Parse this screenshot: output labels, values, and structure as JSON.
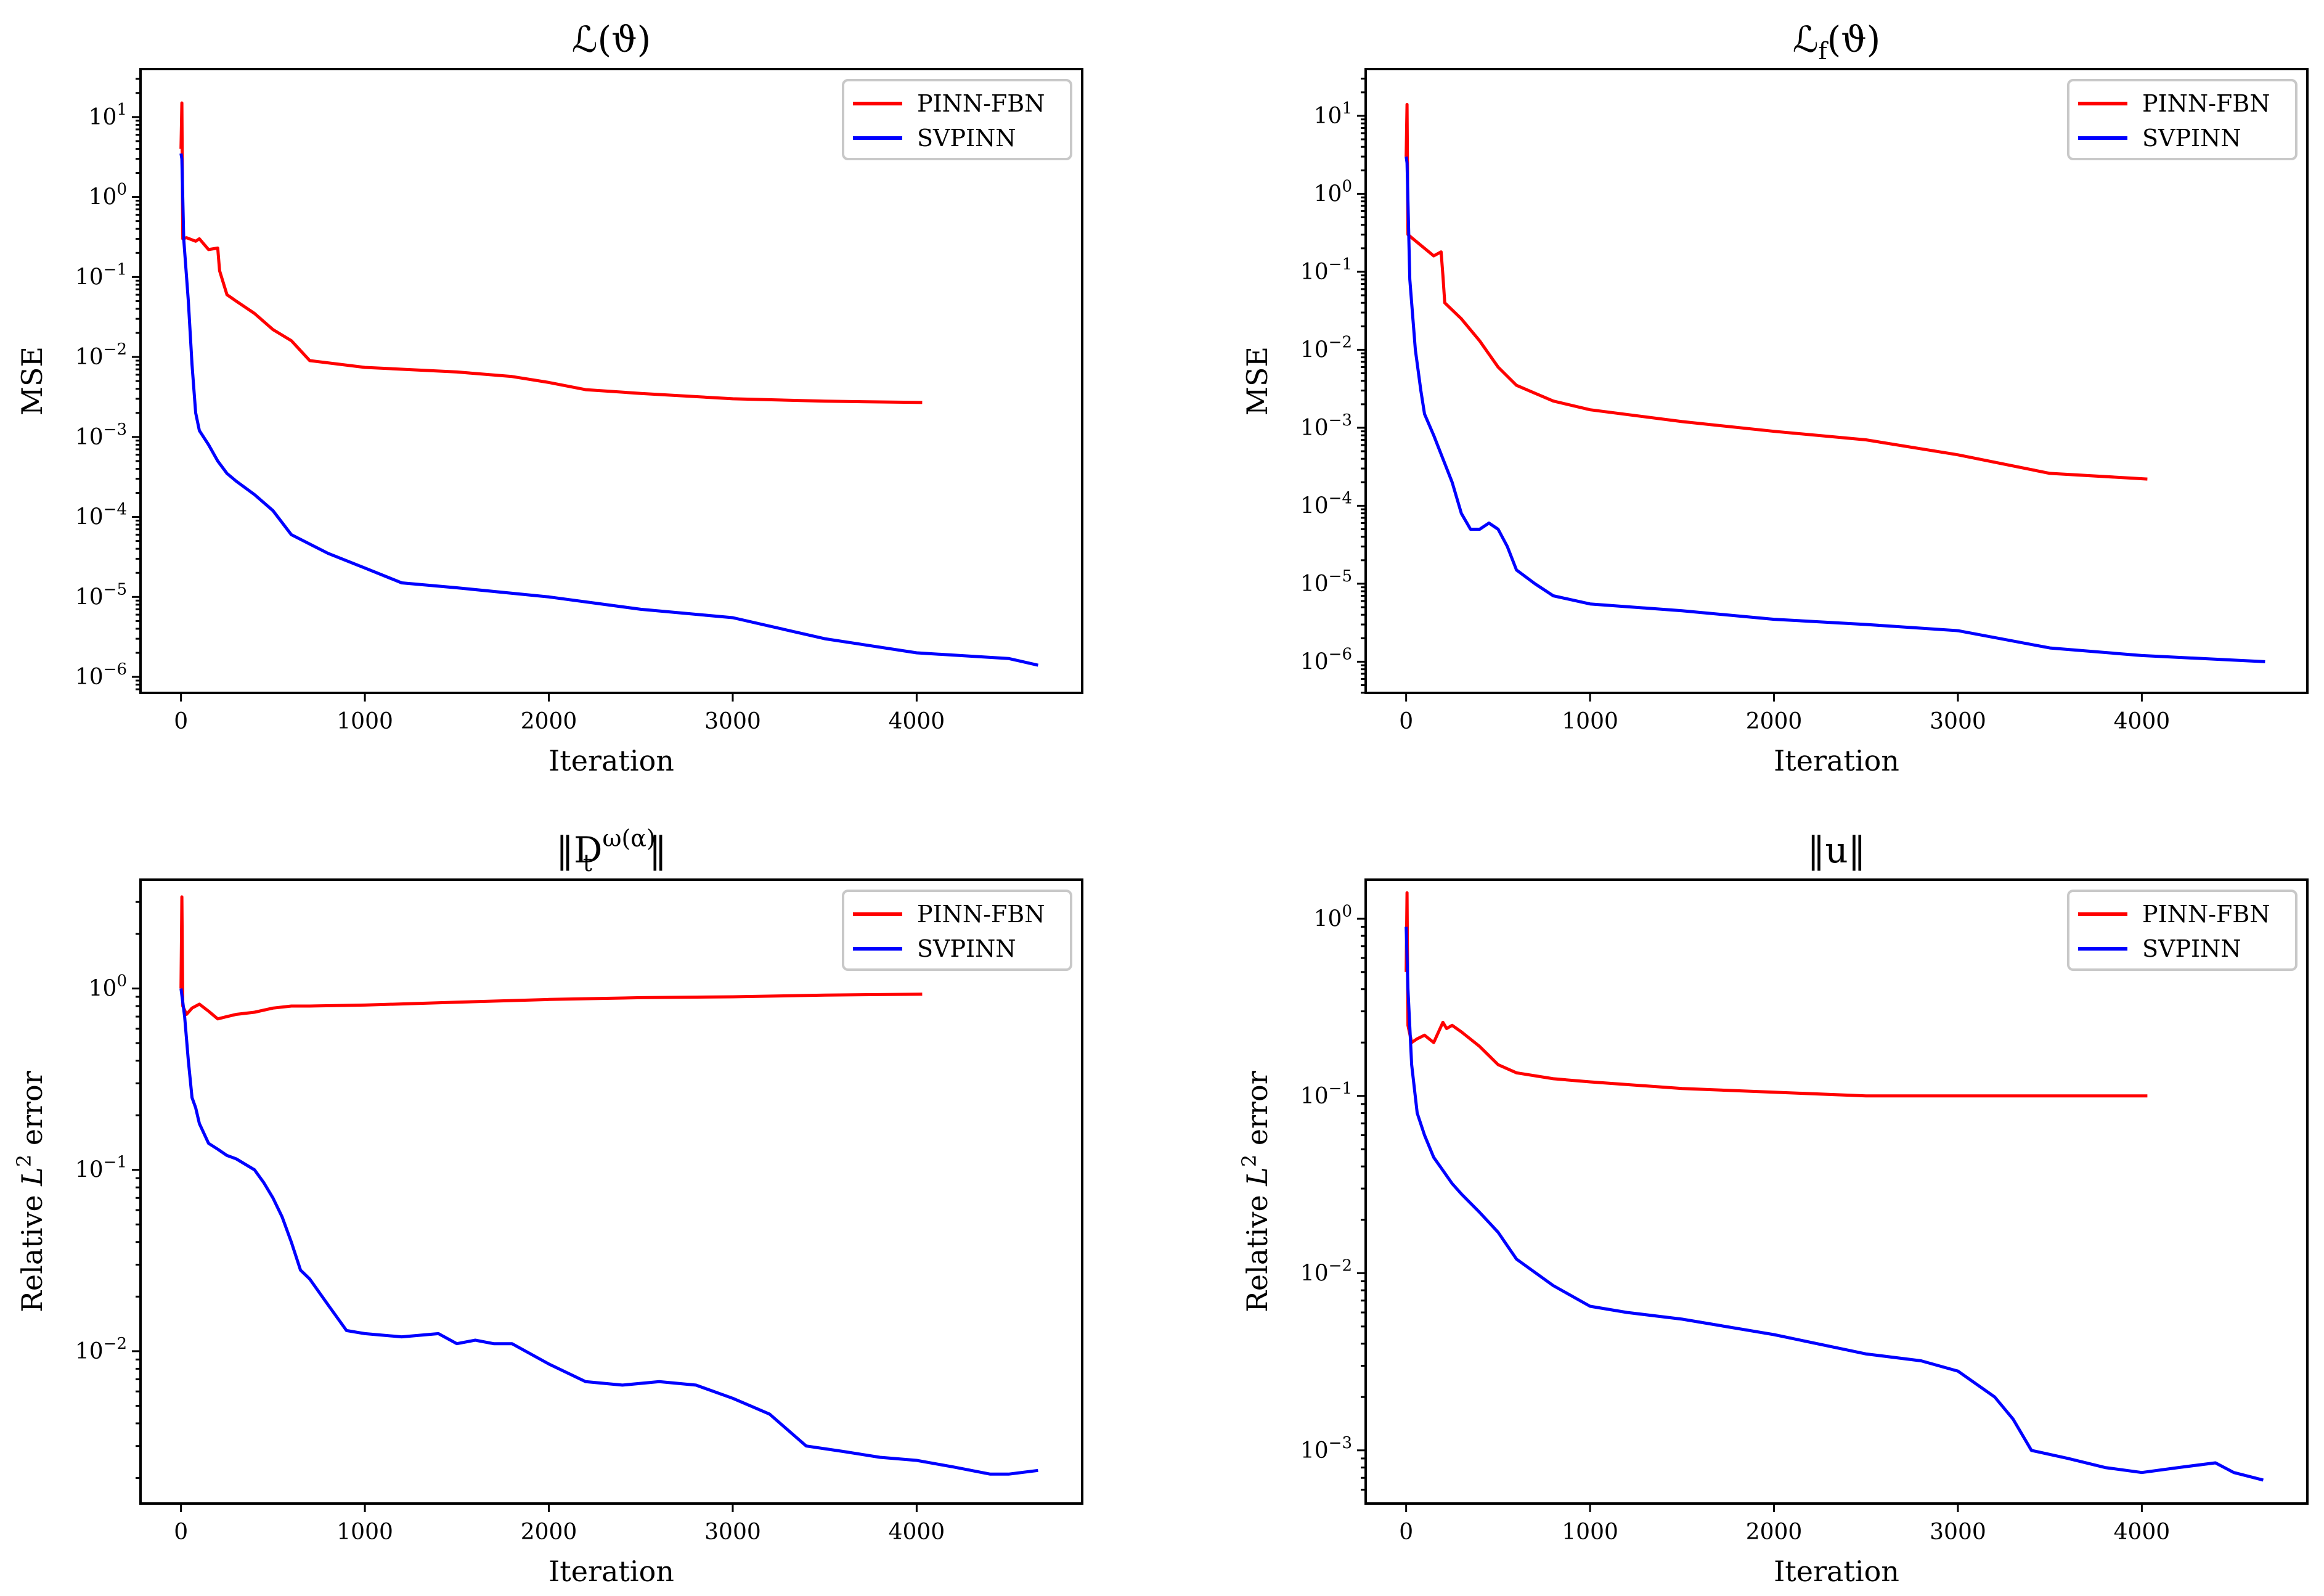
{
  "chart_data": [
    {
      "type": "line",
      "title": "ℒ(ϑ)",
      "xlabel": "Iteration",
      "ylabel": "MSE",
      "yscale": "log",
      "xlim": [
        -220,
        4900
      ],
      "ylim_log10": [
        -6.2,
        1.6
      ],
      "xticks": [
        0,
        1000,
        2000,
        3000,
        4000
      ],
      "xtick_labels": [
        "0",
        "1000",
        "2000",
        "3000",
        "4000"
      ],
      "yticks_exp": [
        1,
        0,
        -1,
        -2,
        -3,
        -4,
        -5,
        -6
      ],
      "ytick_base": "10",
      "ytick_exponents": [
        "1",
        "0",
        "−1",
        "−2",
        "−3",
        "−4",
        "−5",
        "−6"
      ],
      "legend": {
        "position": "top-right",
        "entries": [
          "PINN-FBN",
          "SVPINN"
        ]
      },
      "series": [
        {
          "name": "PINN-FBN",
          "color": "#ff0000",
          "x": [
            0,
            5,
            10,
            30,
            80,
            100,
            150,
            200,
            210,
            250,
            300,
            400,
            500,
            600,
            700,
            1000,
            1500,
            1800,
            2000,
            2200,
            2500,
            3000,
            3500,
            4030
          ],
          "y": [
            4,
            15,
            0.3,
            0.31,
            0.28,
            0.3,
            0.22,
            0.23,
            0.12,
            0.06,
            0.05,
            0.035,
            0.022,
            0.016,
            0.009,
            0.0074,
            0.0065,
            0.0057,
            0.0048,
            0.0039,
            0.0035,
            0.003,
            0.0028,
            0.0027
          ]
        },
        {
          "name": "SVPINN",
          "color": "#0000ff",
          "x": [
            0,
            5,
            15,
            40,
            60,
            80,
            100,
            150,
            200,
            250,
            300,
            400,
            500,
            600,
            800,
            1000,
            1200,
            1500,
            2000,
            2500,
            3000,
            3500,
            4000,
            4500,
            4660
          ],
          "y": [
            3.5,
            3,
            0.3,
            0.05,
            0.008,
            0.002,
            0.0012,
            0.0008,
            0.0005,
            0.00035,
            0.00028,
            0.00019,
            0.00012,
            6e-05,
            3.5e-05,
            2.3e-05,
            1.5e-05,
            1.3e-05,
            1e-05,
            7e-06,
            5.5e-06,
            3e-06,
            2e-06,
            1.7e-06,
            1.4e-06
          ]
        }
      ]
    },
    {
      "type": "line",
      "title": "ℒ_f(ϑ)",
      "xlabel": "Iteration",
      "ylabel": "MSE",
      "yscale": "log",
      "xlim": [
        -220,
        4900
      ],
      "ylim_log10": [
        -6.4,
        1.6
      ],
      "xticks": [
        0,
        1000,
        2000,
        3000,
        4000
      ],
      "xtick_labels": [
        "0",
        "1000",
        "2000",
        "3000",
        "4000"
      ],
      "yticks_exp": [
        1,
        0,
        -1,
        -2,
        -3,
        -4,
        -5,
        -6
      ],
      "ytick_base": "10",
      "ytick_exponents": [
        "1",
        "0",
        "−1",
        "−2",
        "−3",
        "−4",
        "−5",
        "−6"
      ],
      "legend": {
        "position": "top-right",
        "entries": [
          "PINN-FBN",
          "SVPINN"
        ]
      },
      "series": [
        {
          "name": "PINN-FBN",
          "color": "#ff0000",
          "x": [
            0,
            5,
            10,
            50,
            100,
            150,
            190,
            200,
            210,
            300,
            400,
            500,
            600,
            800,
            1000,
            1500,
            2000,
            2500,
            3000,
            3500,
            4030
          ],
          "y": [
            3,
            14,
            0.3,
            0.25,
            0.2,
            0.16,
            0.18,
            0.09,
            0.04,
            0.025,
            0.013,
            0.006,
            0.0035,
            0.0022,
            0.0017,
            0.0012,
            0.0009,
            0.0007,
            0.00045,
            0.00026,
            0.00022
          ]
        },
        {
          "name": "SVPINN",
          "color": "#0000ff",
          "x": [
            0,
            5,
            20,
            50,
            80,
            100,
            150,
            200,
            250,
            300,
            350,
            400,
            450,
            500,
            550,
            600,
            700,
            800,
            1000,
            1500,
            2000,
            2500,
            3000,
            3500,
            4000,
            4670
          ],
          "y": [
            3,
            2.5,
            0.08,
            0.01,
            0.003,
            0.0015,
            0.0008,
            0.0004,
            0.0002,
            8e-05,
            5e-05,
            5e-05,
            6e-05,
            5e-05,
            3e-05,
            1.5e-05,
            1e-05,
            7e-06,
            5.5e-06,
            4.5e-06,
            3.5e-06,
            3e-06,
            2.5e-06,
            1.5e-06,
            1.2e-06,
            1e-06
          ]
        }
      ]
    },
    {
      "type": "line",
      "title": "‖D_t^{ω(α)}‖",
      "xlabel": "Iteration",
      "ylabel": "Relative L² error",
      "yscale": "log",
      "xlim": [
        -220,
        4900
      ],
      "ylim_log10": [
        -2.84,
        0.6
      ],
      "xticks": [
        0,
        1000,
        2000,
        3000,
        4000
      ],
      "xtick_labels": [
        "0",
        "1000",
        "2000",
        "3000",
        "4000"
      ],
      "yticks_exp": [
        0,
        -1,
        -2
      ],
      "ytick_base": "10",
      "ytick_exponents": [
        "0",
        "−1",
        "−2"
      ],
      "legend": {
        "position": "top-right",
        "entries": [
          "PINN-FBN",
          "SVPINN"
        ]
      },
      "series": [
        {
          "name": "PINN-FBN",
          "color": "#ff0000",
          "x": [
            0,
            5,
            10,
            30,
            60,
            100,
            150,
            200,
            250,
            300,
            400,
            500,
            600,
            700,
            1000,
            1500,
            2000,
            2500,
            3000,
            3500,
            4030
          ],
          "y": [
            1.0,
            3.2,
            0.8,
            0.72,
            0.78,
            0.82,
            0.75,
            0.68,
            0.7,
            0.72,
            0.74,
            0.78,
            0.8,
            0.8,
            0.81,
            0.84,
            0.87,
            0.89,
            0.9,
            0.92,
            0.93
          ]
        },
        {
          "name": "SVPINN",
          "color": "#0000ff",
          "x": [
            0,
            20,
            40,
            60,
            80,
            100,
            150,
            200,
            250,
            300,
            400,
            450,
            500,
            550,
            600,
            650,
            700,
            800,
            900,
            1000,
            1200,
            1400,
            1500,
            1600,
            1700,
            1800,
            2000,
            2200,
            2400,
            2600,
            2800,
            3000,
            3200,
            3400,
            3600,
            3800,
            4000,
            4200,
            4400,
            4500,
            4660
          ],
          "y": [
            1.0,
            0.7,
            0.4,
            0.25,
            0.22,
            0.18,
            0.14,
            0.13,
            0.12,
            0.115,
            0.1,
            0.085,
            0.07,
            0.055,
            0.04,
            0.028,
            0.025,
            0.018,
            0.013,
            0.0125,
            0.012,
            0.0125,
            0.011,
            0.0115,
            0.011,
            0.011,
            0.0085,
            0.0068,
            0.0065,
            0.0068,
            0.0065,
            0.0055,
            0.0045,
            0.003,
            0.0028,
            0.0026,
            0.0025,
            0.0023,
            0.0021,
            0.0021,
            0.0022
          ]
        }
      ]
    },
    {
      "type": "line",
      "title": "‖u‖",
      "xlabel": "Iteration",
      "ylabel": "Relative L² error",
      "yscale": "log",
      "xlim": [
        -220,
        4900
      ],
      "ylim_log10": [
        -3.3,
        0.22
      ],
      "xticks": [
        0,
        1000,
        2000,
        3000,
        4000
      ],
      "xtick_labels": [
        "0",
        "1000",
        "2000",
        "3000",
        "4000"
      ],
      "yticks_exp": [
        0,
        -1,
        -2,
        -3
      ],
      "ytick_base": "10",
      "ytick_exponents": [
        "0",
        "−1",
        "−2",
        "−3"
      ],
      "legend": {
        "position": "top-right",
        "entries": [
          "PINN-FBN",
          "SVPINN"
        ]
      },
      "series": [
        {
          "name": "PINN-FBN",
          "color": "#ff0000",
          "x": [
            0,
            5,
            10,
            30,
            60,
            100,
            150,
            200,
            220,
            250,
            300,
            400,
            500,
            600,
            800,
            1000,
            1500,
            2000,
            2500,
            3000,
            3500,
            4030
          ],
          "y": [
            0.5,
            1.4,
            0.25,
            0.2,
            0.21,
            0.22,
            0.2,
            0.26,
            0.24,
            0.25,
            0.23,
            0.19,
            0.15,
            0.135,
            0.125,
            0.12,
            0.11,
            0.105,
            0.1,
            0.1,
            0.1,
            0.1
          ]
        },
        {
          "name": "SVPINN",
          "color": "#0000ff",
          "x": [
            0,
            10,
            30,
            60,
            100,
            150,
            200,
            250,
            300,
            400,
            500,
            600,
            800,
            1000,
            1200,
            1500,
            2000,
            2500,
            2800,
            3000,
            3200,
            3300,
            3400,
            3600,
            3800,
            4000,
            4200,
            4400,
            4500,
            4660
          ],
          "y": [
            0.9,
            0.4,
            0.15,
            0.08,
            0.06,
            0.045,
            0.038,
            0.032,
            0.028,
            0.022,
            0.017,
            0.012,
            0.0085,
            0.0065,
            0.006,
            0.0055,
            0.0045,
            0.0035,
            0.0032,
            0.0028,
            0.002,
            0.0015,
            0.001,
            0.0009,
            0.0008,
            0.00075,
            0.0008,
            0.00085,
            0.00075,
            0.00068
          ]
        }
      ]
    }
  ]
}
